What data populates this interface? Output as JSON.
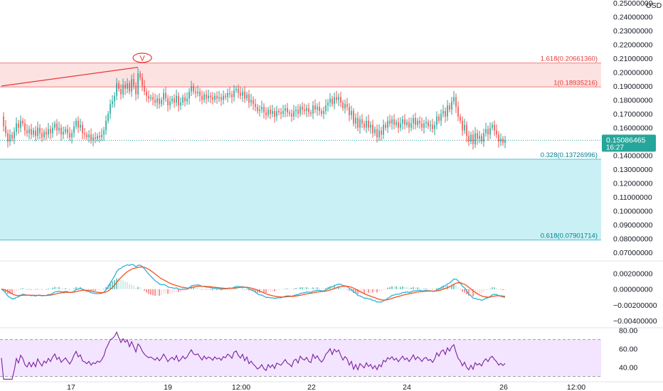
{
  "chart_data": {
    "type": "candlestick",
    "currency": "USD",
    "current_price": {
      "value": 0.15086465,
      "label": "0.15086465",
      "countdown": "16:27",
      "color": "#26a69a"
    },
    "colors": {
      "up": "#26a69a",
      "down": "#ef5350",
      "macd_line": "#2ab2d6",
      "signal_line": "#f4511e",
      "rsi_line": "#7b1fa2",
      "rsi_band": "#f3e5ff",
      "fib_upper_zone": "#fde2e2",
      "fib_upper_line": "#f08080",
      "fib_lower_zone": "#c9f0f5",
      "fib_lower_line": "#4dc3d6"
    },
    "x_ticks": [
      "17",
      "19",
      "12:00",
      "22",
      "24",
      "26",
      "12:00"
    ],
    "price_axis": {
      "ylim": [
        0.065,
        0.252
      ],
      "ticks": [
        "0.25000000",
        "0.24000000",
        "0.23000000",
        "0.22000000",
        "0.21000000",
        "0.20000000",
        "0.19000000",
        "0.18000000",
        "0.17000000",
        "0.16000000",
        "0.14000000",
        "0.13000000",
        "0.12000000",
        "0.11000000",
        "0.10000000",
        "0.09000000",
        "0.08000000",
        "0.07000000"
      ]
    },
    "fib_levels": [
      {
        "value": 0.2066136,
        "label": "1.618(0.20661360)"
      },
      {
        "value": 0.18935216,
        "label": "1(0.18935216)"
      },
      {
        "value": 0.13726996,
        "label": "0.328(0.13726996)"
      },
      {
        "value": 0.07901714,
        "label": "0.618(0.07901714)"
      }
    ],
    "trend_line": {
      "from": {
        "i": 0,
        "v": 0.19
      },
      "to": {
        "i": 64,
        "v": 0.2035
      }
    },
    "marker": {
      "label": "V",
      "i": 66,
      "v": 0.2052
    },
    "price_series": [
      0.168,
      0.161,
      0.156,
      0.15,
      0.155,
      0.152,
      0.157,
      0.163,
      0.16,
      0.165,
      0.163,
      0.158,
      0.156,
      0.159,
      0.155,
      0.158,
      0.154,
      0.16,
      0.156,
      0.153,
      0.157,
      0.155,
      0.159,
      0.156,
      0.16,
      0.163,
      0.158,
      0.16,
      0.155,
      0.157,
      0.159,
      0.156,
      0.153,
      0.156,
      0.161,
      0.165,
      0.16,
      0.162,
      0.156,
      0.155,
      0.153,
      0.155,
      0.151,
      0.153,
      0.152,
      0.154,
      0.153,
      0.155,
      0.158,
      0.165,
      0.17,
      0.177,
      0.179,
      0.183,
      0.192,
      0.188,
      0.184,
      0.191,
      0.188,
      0.192,
      0.186,
      0.195,
      0.19,
      0.184,
      0.199,
      0.196,
      0.19,
      0.186,
      0.183,
      0.181,
      0.182,
      0.18,
      0.178,
      0.181,
      0.177,
      0.18,
      0.185,
      0.181,
      0.176,
      0.179,
      0.181,
      0.178,
      0.183,
      0.176,
      0.178,
      0.182,
      0.179,
      0.181,
      0.186,
      0.19,
      0.186,
      0.185,
      0.186,
      0.183,
      0.18,
      0.184,
      0.181,
      0.183,
      0.182,
      0.18,
      0.183,
      0.181,
      0.182,
      0.18,
      0.183,
      0.182,
      0.185,
      0.184,
      0.182,
      0.187,
      0.188,
      0.185,
      0.183,
      0.186,
      0.181,
      0.184,
      0.178,
      0.18,
      0.177,
      0.175,
      0.172,
      0.173,
      0.175,
      0.171,
      0.169,
      0.173,
      0.17,
      0.172,
      0.168,
      0.172,
      0.171,
      0.17,
      0.172,
      0.174,
      0.171,
      0.17,
      0.168,
      0.172,
      0.173,
      0.17,
      0.175,
      0.173,
      0.172,
      0.174,
      0.171,
      0.17,
      0.176,
      0.173,
      0.175,
      0.172,
      0.17,
      0.172,
      0.176,
      0.178,
      0.181,
      0.177,
      0.182,
      0.18,
      0.182,
      0.178,
      0.174,
      0.177,
      0.175,
      0.169,
      0.172,
      0.163,
      0.167,
      0.16,
      0.166,
      0.163,
      0.16,
      0.165,
      0.16,
      0.162,
      0.156,
      0.159,
      0.153,
      0.158,
      0.155,
      0.162,
      0.16,
      0.165,
      0.163,
      0.166,
      0.162,
      0.164,
      0.16,
      0.163,
      0.166,
      0.162,
      0.164,
      0.16,
      0.163,
      0.167,
      0.162,
      0.165,
      0.163,
      0.16,
      0.163,
      0.164,
      0.161,
      0.162,
      0.159,
      0.162,
      0.168,
      0.165,
      0.17,
      0.172,
      0.168,
      0.176,
      0.173,
      0.179,
      0.182,
      0.175,
      0.168,
      0.165,
      0.158,
      0.162,
      0.154,
      0.15,
      0.155,
      0.148,
      0.156,
      0.152,
      0.154,
      0.15,
      0.156,
      0.159,
      0.155,
      0.16,
      0.162,
      0.158,
      0.155,
      0.15,
      0.152,
      0.149,
      0.151
    ],
    "macd": {
      "ylim": [
        -0.0048,
        0.0034
      ],
      "ticks": [
        "0.00200000",
        "0.00000000",
        "−0.00200000",
        "−0.00400000"
      ]
    },
    "rsi": {
      "ylim": [
        25,
        82
      ],
      "ticks": [
        "80.00",
        "60.00",
        "40.00"
      ],
      "band": [
        30,
        70
      ]
    }
  }
}
